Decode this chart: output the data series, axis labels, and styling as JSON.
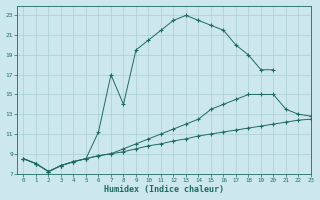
{
  "xlabel": "Humidex (Indice chaleur)",
  "ylabel": "",
  "bg_color": "#cde8ec",
  "line_color": "#1e6b5e",
  "grid_color": "#aacdd4",
  "xlim": [
    -0.5,
    23
  ],
  "ylim": [
    7,
    24
  ],
  "xticks": [
    0,
    1,
    2,
    3,
    4,
    5,
    6,
    7,
    8,
    9,
    10,
    11,
    12,
    13,
    14,
    15,
    16,
    17,
    18,
    19,
    20,
    21,
    22,
    23
  ],
  "yticks": [
    7,
    9,
    11,
    13,
    15,
    17,
    19,
    21,
    23
  ],
  "series": [
    {
      "x": [
        0,
        1,
        2,
        3,
        4,
        5,
        6,
        7,
        8,
        9,
        10,
        11,
        12,
        13,
        14,
        15,
        16,
        17,
        18,
        19,
        20,
        21,
        22,
        23
      ],
      "y": [
        8.5,
        8.0,
        7.2,
        7.8,
        8.2,
        8.5,
        11.2,
        17.0,
        14.0,
        19.5,
        20.5,
        21.5,
        22.5,
        23.0,
        22.5,
        22.0,
        21.5,
        20.0,
        19.0,
        17.5,
        17.5,
        null,
        null,
        null
      ]
    },
    {
      "x": [
        0,
        1,
        2,
        3,
        4,
        5,
        6,
        7,
        8,
        9,
        10,
        11,
        12,
        13,
        14,
        15,
        16,
        17,
        18,
        19,
        20,
        21,
        22,
        23
      ],
      "y": [
        8.5,
        8.0,
        7.2,
        7.8,
        8.2,
        8.5,
        8.8,
        9.0,
        9.2,
        9.5,
        9.8,
        10.0,
        10.3,
        10.5,
        10.8,
        11.0,
        11.2,
        11.4,
        11.6,
        11.8,
        12.0,
        12.2,
        12.4,
        12.5
      ]
    },
    {
      "x": [
        0,
        1,
        2,
        3,
        4,
        5,
        6,
        7,
        8,
        9,
        10,
        11,
        12,
        13,
        14,
        15,
        16,
        17,
        18,
        19,
        20,
        21,
        22,
        23
      ],
      "y": [
        8.5,
        8.0,
        7.2,
        7.8,
        8.2,
        8.5,
        8.8,
        9.0,
        9.5,
        10.0,
        10.5,
        11.0,
        11.5,
        12.0,
        12.5,
        13.5,
        14.0,
        14.5,
        15.0,
        15.0,
        15.0,
        13.5,
        13.0,
        12.8
      ]
    }
  ]
}
